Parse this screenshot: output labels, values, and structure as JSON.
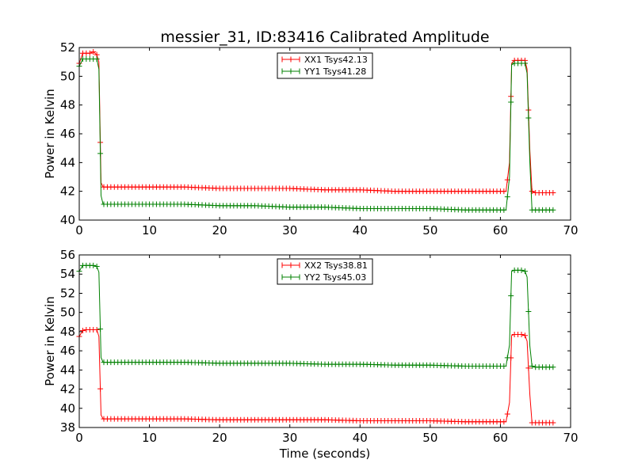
{
  "chart_data": [
    {
      "type": "line",
      "title": "messier_31, ID:83416 Calibrated Amplitude",
      "xlabel": "",
      "ylabel": "Power in Kelvin",
      "xlim": [
        0,
        70
      ],
      "ylim": [
        40,
        52
      ],
      "xticks": [
        "0",
        "10",
        "20",
        "30",
        "40",
        "50",
        "60",
        "70"
      ],
      "yticks": [
        "40",
        "42",
        "44",
        "46",
        "48",
        "50",
        "52"
      ],
      "legend_position": "top-center",
      "grid": false,
      "series": [
        {
          "name": "XX1 Tsys42.13",
          "color": "#ff0000",
          "points": [
            [
              0,
              50.9
            ],
            [
              0.5,
              51.6
            ],
            [
              1,
              51.6
            ],
            [
              1.5,
              51.6
            ],
            [
              2,
              51.7
            ],
            [
              2.5,
              51.5
            ],
            [
              2.8,
              51.0
            ],
            [
              3.1,
              42.6
            ],
            [
              3.4,
              42.3
            ],
            [
              5,
              42.3
            ],
            [
              10,
              42.3
            ],
            [
              15,
              42.3
            ],
            [
              20,
              42.2
            ],
            [
              25,
              42.2
            ],
            [
              30,
              42.2
            ],
            [
              35,
              42.1
            ],
            [
              40,
              42.1
            ],
            [
              45,
              42.0
            ],
            [
              50,
              42.0
            ],
            [
              55,
              42.0
            ],
            [
              60,
              42.0
            ],
            [
              60.8,
              42.0
            ],
            [
              61.3,
              44.0
            ],
            [
              61.6,
              50.9
            ],
            [
              62,
              51.1
            ],
            [
              62.5,
              51.1
            ],
            [
              63,
              51.1
            ],
            [
              63.5,
              51.1
            ],
            [
              63.8,
              50.5
            ],
            [
              64.2,
              44.8
            ],
            [
              64.5,
              42.0
            ],
            [
              65,
              41.9
            ],
            [
              66,
              41.9
            ],
            [
              67,
              41.9
            ],
            [
              67.5,
              41.9
            ]
          ]
        },
        {
          "name": "YY1 Tsys41.28",
          "color": "#008000",
          "points": [
            [
              0,
              50.7
            ],
            [
              0.5,
              51.2
            ],
            [
              1,
              51.2
            ],
            [
              1.5,
              51.2
            ],
            [
              2,
              51.2
            ],
            [
              2.5,
              51.2
            ],
            [
              2.8,
              50.5
            ],
            [
              3.1,
              41.7
            ],
            [
              3.4,
              41.1
            ],
            [
              5,
              41.1
            ],
            [
              10,
              41.1
            ],
            [
              15,
              41.1
            ],
            [
              20,
              41.0
            ],
            [
              25,
              41.0
            ],
            [
              30,
              40.9
            ],
            [
              35,
              40.9
            ],
            [
              40,
              40.8
            ],
            [
              45,
              40.8
            ],
            [
              50,
              40.8
            ],
            [
              55,
              40.7
            ],
            [
              60,
              40.7
            ],
            [
              60.8,
              40.7
            ],
            [
              61.3,
              43.0
            ],
            [
              61.6,
              50.8
            ],
            [
              62,
              50.9
            ],
            [
              62.5,
              50.9
            ],
            [
              63,
              50.9
            ],
            [
              63.5,
              50.9
            ],
            [
              63.8,
              50.2
            ],
            [
              64.2,
              44.0
            ],
            [
              64.5,
              40.7
            ],
            [
              65,
              40.7
            ],
            [
              66,
              40.7
            ],
            [
              67,
              40.7
            ],
            [
              67.5,
              40.7
            ]
          ]
        }
      ]
    },
    {
      "type": "line",
      "title": "",
      "xlabel": "Time (seconds)",
      "ylabel": "Power in Kelvin",
      "xlim": [
        0,
        70
      ],
      "ylim": [
        38,
        56
      ],
      "xticks": [
        "0",
        "10",
        "20",
        "30",
        "40",
        "50",
        "60",
        "70"
      ],
      "yticks": [
        "38",
        "40",
        "42",
        "44",
        "46",
        "48",
        "50",
        "52",
        "54",
        "56"
      ],
      "legend_position": "top-center",
      "grid": false,
      "series": [
        {
          "name": "XX2 Tsys38.81",
          "color": "#ff0000",
          "points": [
            [
              0,
              47.5
            ],
            [
              0.5,
              48.1
            ],
            [
              1,
              48.2
            ],
            [
              1.5,
              48.2
            ],
            [
              2,
              48.2
            ],
            [
              2.5,
              48.2
            ],
            [
              2.8,
              47.5
            ],
            [
              3.1,
              39.3
            ],
            [
              3.4,
              38.9
            ],
            [
              5,
              38.9
            ],
            [
              10,
              38.9
            ],
            [
              15,
              38.9
            ],
            [
              20,
              38.8
            ],
            [
              25,
              38.8
            ],
            [
              30,
              38.8
            ],
            [
              35,
              38.8
            ],
            [
              40,
              38.7
            ],
            [
              45,
              38.7
            ],
            [
              50,
              38.7
            ],
            [
              55,
              38.6
            ],
            [
              60,
              38.6
            ],
            [
              60.8,
              38.6
            ],
            [
              61.3,
              40.6
            ],
            [
              61.6,
              47.6
            ],
            [
              62,
              47.7
            ],
            [
              62.5,
              47.7
            ],
            [
              63,
              47.7
            ],
            [
              63.5,
              47.6
            ],
            [
              63.8,
              47.0
            ],
            [
              64.2,
              41.4
            ],
            [
              64.5,
              38.5
            ],
            [
              65,
              38.5
            ],
            [
              66,
              38.5
            ],
            [
              67,
              38.5
            ],
            [
              67.5,
              38.5
            ]
          ]
        },
        {
          "name": "YY2 Tsys45.03",
          "color": "#008000",
          "points": [
            [
              0,
              54.3
            ],
            [
              0.5,
              54.9
            ],
            [
              1,
              54.9
            ],
            [
              1.5,
              54.9
            ],
            [
              2,
              54.9
            ],
            [
              2.5,
              54.8
            ],
            [
              2.8,
              54.2
            ],
            [
              3.1,
              45.3
            ],
            [
              3.4,
              44.8
            ],
            [
              5,
              44.8
            ],
            [
              10,
              44.8
            ],
            [
              15,
              44.8
            ],
            [
              20,
              44.7
            ],
            [
              25,
              44.7
            ],
            [
              30,
              44.7
            ],
            [
              35,
              44.6
            ],
            [
              40,
              44.6
            ],
            [
              45,
              44.5
            ],
            [
              50,
              44.5
            ],
            [
              55,
              44.4
            ],
            [
              60,
              44.4
            ],
            [
              60.8,
              44.4
            ],
            [
              61.3,
              46.6
            ],
            [
              61.6,
              54.3
            ],
            [
              62,
              54.4
            ],
            [
              62.5,
              54.4
            ],
            [
              63,
              54.4
            ],
            [
              63.5,
              54.3
            ],
            [
              63.8,
              53.7
            ],
            [
              64.2,
              46.5
            ],
            [
              64.5,
              44.4
            ],
            [
              65,
              44.3
            ],
            [
              66,
              44.3
            ],
            [
              67,
              44.3
            ],
            [
              67.5,
              44.3
            ]
          ]
        }
      ]
    }
  ]
}
